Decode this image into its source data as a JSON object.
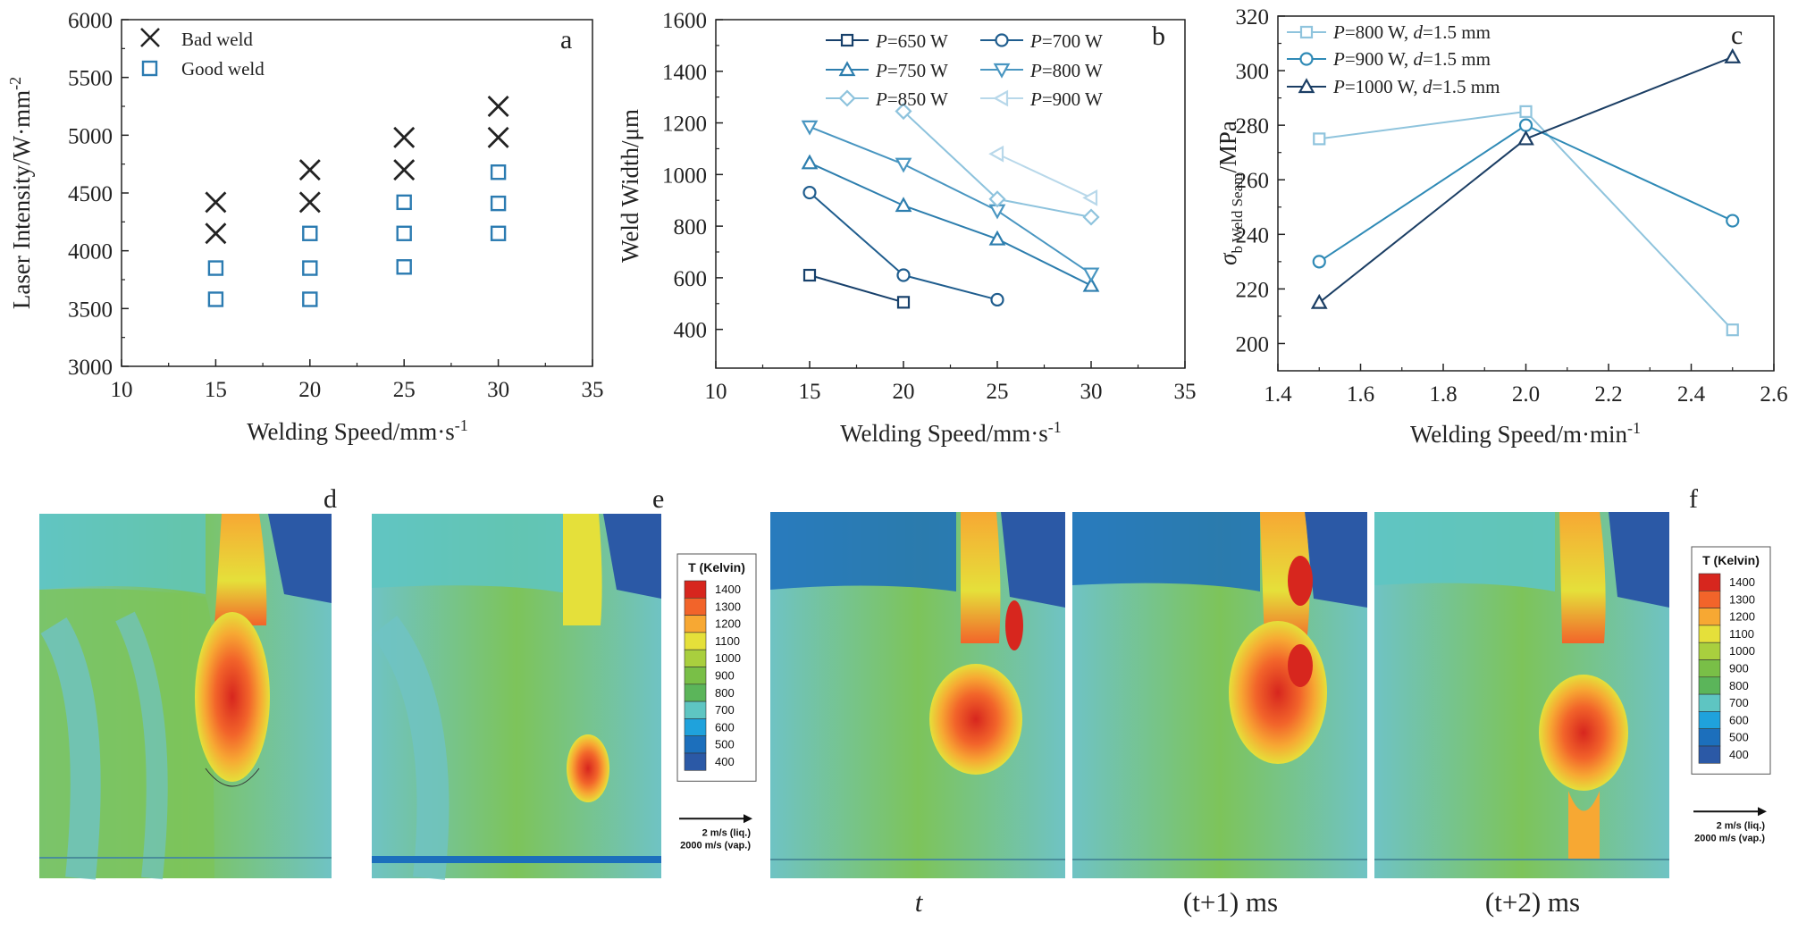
{
  "colors": {
    "c650": "#17406b",
    "c700": "#1f5d8e",
    "c750": "#2d7eae",
    "c800": "#4996c1",
    "c850": "#8ec3dd",
    "c900": "#b8d8ea",
    "c_800mm": "#8fc4dd",
    "c_900mm": "#2f8ab6",
    "c_1000mm": "#1b3e64",
    "bad_marker": "#222222",
    "good_marker": "#2b7bb1"
  },
  "chart_data": [
    {
      "panel": "a",
      "type": "scatter",
      "xlabel": "Welding Speed/mm·s",
      "xlabel_sup": "-1",
      "ylabel": "Laser Intensity/W·mm",
      "ylabel_sup": "-2",
      "xlim": [
        10,
        35
      ],
      "ylim": [
        3000,
        6000
      ],
      "xticks": [
        "10",
        "15",
        "20",
        "25",
        "30",
        "35"
      ],
      "yticks": [
        "3000",
        "3500",
        "4000",
        "4500",
        "5000",
        "5500",
        "6000"
      ],
      "legend_position": "top-left",
      "series": [
        {
          "name": "Bad weld",
          "marker": "x",
          "points": [
            [
              15,
              4420
            ],
            [
              15,
              4150
            ],
            [
              20,
              4700
            ],
            [
              20,
              4420
            ],
            [
              25,
              4980
            ],
            [
              25,
              4700
            ],
            [
              30,
              5250
            ],
            [
              30,
              4980
            ]
          ]
        },
        {
          "name": "Good weld",
          "marker": "square",
          "points": [
            [
              15,
              3850
            ],
            [
              15,
              3580
            ],
            [
              20,
              4150
            ],
            [
              20,
              3850
            ],
            [
              20,
              3580
            ],
            [
              25,
              4420
            ],
            [
              25,
              4150
            ],
            [
              25,
              3860
            ],
            [
              30,
              4680
            ],
            [
              30,
              4410
            ],
            [
              30,
              4150
            ]
          ]
        }
      ]
    },
    {
      "panel": "b",
      "type": "line",
      "xlabel": "Welding Speed/mm·s",
      "xlabel_sup": "-1",
      "ylabel": "Weld Width/μm",
      "xlim": [
        10,
        35
      ],
      "ylim": [
        250,
        1600
      ],
      "xticks": [
        "10",
        "15",
        "20",
        "25",
        "30",
        "35"
      ],
      "yticks": [
        "400",
        "600",
        "800",
        "1000",
        "1200",
        "1400",
        "1600"
      ],
      "legend_position": "top-right",
      "series": [
        {
          "name_italic": "P",
          "name_rest": "=650 W",
          "marker": "square",
          "x": [
            15,
            20
          ],
          "y": [
            610,
            505
          ]
        },
        {
          "name_italic": "P",
          "name_rest": "=700 W",
          "marker": "circle",
          "x": [
            15,
            20,
            25
          ],
          "y": [
            930,
            610,
            515
          ]
        },
        {
          "name_italic": "P",
          "name_rest": "=750 W",
          "marker": "triangle-up",
          "x": [
            15,
            20,
            25,
            30
          ],
          "y": [
            1045,
            880,
            750,
            570
          ]
        },
        {
          "name_italic": "P",
          "name_rest": "=800 W",
          "marker": "triangle-down",
          "x": [
            15,
            20,
            25,
            30
          ],
          "y": [
            1185,
            1040,
            860,
            615
          ]
        },
        {
          "name_italic": "P",
          "name_rest": "=850 W",
          "marker": "diamond",
          "x": [
            20,
            25,
            30
          ],
          "y": [
            1245,
            905,
            835
          ]
        },
        {
          "name_italic": "P",
          "name_rest": "=900 W",
          "marker": "triangle-left",
          "x": [
            25,
            30
          ],
          "y": [
            1080,
            910
          ]
        }
      ]
    },
    {
      "panel": "c",
      "type": "line",
      "xlabel": "Welding Speed/m·min",
      "xlabel_sup": "-1",
      "ylabel_sigma": "σ",
      "ylabel_sub": "b Weld Seam",
      "ylabel_rest": "/MPa",
      "xlim": [
        1.4,
        2.6
      ],
      "ylim": [
        190,
        320
      ],
      "xticks": [
        "1.4",
        "1.6",
        "1.8",
        "2.0",
        "2.2",
        "2.4",
        "2.6"
      ],
      "yticks": [
        "200",
        "220",
        "240",
        "260",
        "280",
        "300",
        "320"
      ],
      "legend_position": "top-left",
      "series": [
        {
          "name_italic": "P",
          "name_mid": "=800 W, ",
          "name_italic2": "d",
          "name_rest": "=1.5 mm",
          "marker": "square",
          "x": [
            1.5,
            2.0,
            2.5
          ],
          "y": [
            275,
            285,
            205
          ]
        },
        {
          "name_italic": "P",
          "name_mid": "=900 W, ",
          "name_italic2": "d",
          "name_rest": "=1.5 mm",
          "marker": "circle",
          "x": [
            1.5,
            2.0,
            2.5
          ],
          "y": [
            230,
            280,
            245
          ]
        },
        {
          "name_italic": "P",
          "name_mid": "=1000 W, ",
          "name_italic2": "d",
          "name_rest": "=1.5 mm",
          "marker": "triangle-up",
          "x": [
            1.5,
            2.0,
            2.5
          ],
          "y": [
            215,
            275,
            305
          ]
        }
      ]
    }
  ],
  "panel_letters": {
    "a": "a",
    "b": "b",
    "c": "c",
    "d": "d",
    "e": "e",
    "f": "f"
  },
  "colorbar": {
    "title": "T (Kelvin)",
    "levels": [
      {
        "label": "1400",
        "color": "#d7261e"
      },
      {
        "label": "1300",
        "color": "#f2642a"
      },
      {
        "label": "1200",
        "color": "#f7a833"
      },
      {
        "label": "1100",
        "color": "#e5e03a"
      },
      {
        "label": "1000",
        "color": "#a9cf3e"
      },
      {
        "label": "900",
        "color": "#79bf47"
      },
      {
        "label": "800",
        "color": "#5bb55a"
      },
      {
        "label": "700",
        "color": "#5ec5c2"
      },
      {
        "label": "600",
        "color": "#1fa2dc"
      },
      {
        "label": "500",
        "color": "#1c6fbc"
      },
      {
        "label": "400",
        "color": "#2b59a6"
      }
    ],
    "velocity_liq": "2 m/s (liq.)",
    "velocity_vap": "2000 m/s (vap.)"
  },
  "captions": {
    "t": "t",
    "t1_open": "(t",
    "t1_rest": "+1) ms",
    "t2_open": "(t",
    "t2_rest": "+2) ms"
  }
}
